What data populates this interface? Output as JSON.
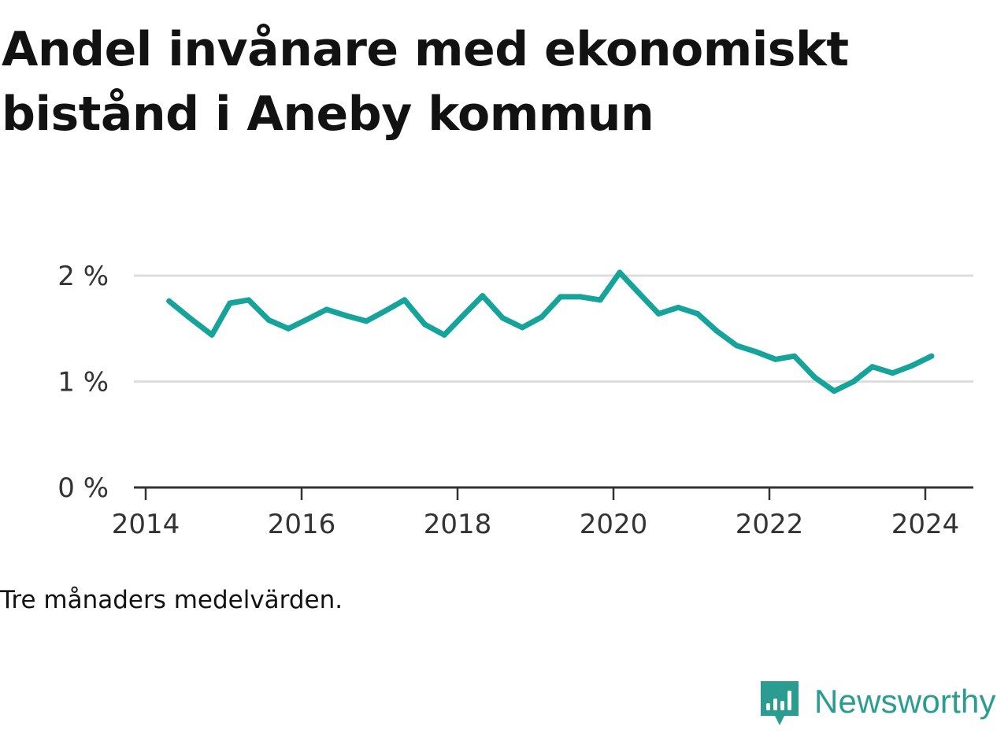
{
  "header": {
    "title": "Andel invånare med ekonomiskt bistånd i Aneby kommun"
  },
  "caption": "Tre månaders medelvärden.",
  "brand": {
    "name": "Newsworthy",
    "color": "#2a9d90",
    "icon": "newsworthy-logo-icon"
  },
  "chart_data": {
    "type": "line",
    "title": "Andel invånare med ekonomiskt bistånd i Aneby kommun",
    "xlabel": "",
    "ylabel": "",
    "x_ticks": [
      "2014",
      "2016",
      "2018",
      "2020",
      "2022",
      "2024"
    ],
    "y_ticks": [
      "0 %",
      "1 %",
      "2 %"
    ],
    "xlim": [
      2014.0,
      2024.6
    ],
    "ylim": [
      0,
      2.1
    ],
    "grid": true,
    "line_color": "#16a39a",
    "series": [
      {
        "x": [
          2014.3,
          2014.55,
          2014.85,
          2015.08,
          2015.32,
          2015.58,
          2015.83,
          2016.08,
          2016.32,
          2016.58,
          2016.83,
          2017.08,
          2017.32,
          2017.58,
          2017.83,
          2018.08,
          2018.32,
          2018.58,
          2018.83,
          2019.08,
          2019.32,
          2019.58,
          2019.83,
          2020.08,
          2020.32,
          2020.58,
          2020.83,
          2021.08,
          2021.32,
          2021.58,
          2021.83,
          2022.08,
          2022.32,
          2022.58,
          2022.83,
          2023.08,
          2023.32,
          2023.58,
          2023.83,
          2024.08
        ],
        "values": [
          1.76,
          1.61,
          1.44,
          1.74,
          1.77,
          1.58,
          1.5,
          1.59,
          1.68,
          1.62,
          1.57,
          1.67,
          1.77,
          1.54,
          1.44,
          1.63,
          1.81,
          1.6,
          1.51,
          1.61,
          1.8,
          1.8,
          1.77,
          2.03,
          1.84,
          1.64,
          1.7,
          1.64,
          1.48,
          1.34,
          1.28,
          1.21,
          1.24,
          1.04,
          0.91,
          1.0,
          1.14,
          1.08,
          1.15,
          1.24
        ]
      }
    ]
  }
}
